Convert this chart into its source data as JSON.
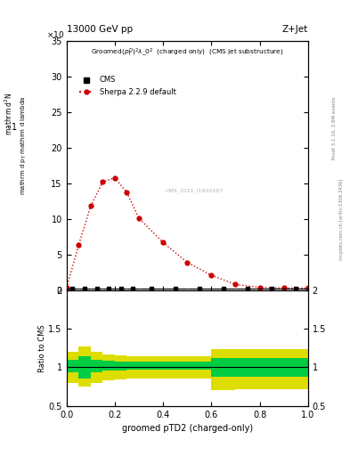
{
  "title_top": "13000 GeV pp",
  "title_right": "Z+Jet",
  "xlabel": "groomed pTD2 (charged-only)",
  "ylabel_main_lines": [
    "mathrm d^2N",
    "mathrm d p_T mathrm d lambda"
  ],
  "ylabel_ratio": "Ratio to CMS",
  "rivet_label": "Rivet 3.1.10, 2.8M events",
  "mcplots_label": "mcplots.cern.ch [arXiv:1306.3436]",
  "cms_label": "CMS_2021_I1920187",
  "ylim_main": [
    0,
    35
  ],
  "ylim_ratio": [
    0.5,
    2.0
  ],
  "xlim": [
    0.0,
    1.0
  ],
  "sherpa_x": [
    0.0,
    0.05,
    0.1,
    0.15,
    0.2,
    0.25,
    0.3,
    0.4,
    0.5,
    0.6,
    0.7,
    0.8,
    0.9,
    1.0
  ],
  "sherpa_y": [
    0.3,
    6.3,
    11.8,
    15.2,
    15.8,
    13.7,
    10.1,
    6.7,
    3.9,
    2.1,
    0.8,
    0.4,
    0.3,
    0.3
  ],
  "cms_x": [
    0.025,
    0.075,
    0.125,
    0.175,
    0.225,
    0.275,
    0.35,
    0.45,
    0.55,
    0.65,
    0.75,
    0.85,
    0.95
  ],
  "cms_y": [
    0.2,
    0.2,
    0.2,
    0.2,
    0.2,
    0.2,
    0.2,
    0.2,
    0.2,
    0.2,
    0.2,
    0.2,
    0.2
  ],
  "cms_xerr": [
    0.025,
    0.025,
    0.025,
    0.025,
    0.025,
    0.025,
    0.05,
    0.05,
    0.05,
    0.05,
    0.05,
    0.05,
    0.05
  ],
  "ratio_x_edges": [
    0.0,
    0.05,
    0.1,
    0.15,
    0.2,
    0.25,
    0.3,
    0.4,
    0.5,
    0.6,
    0.7,
    0.8,
    0.9,
    1.0
  ],
  "ratio_green_lo": [
    0.93,
    0.85,
    0.93,
    0.96,
    0.96,
    0.97,
    0.97,
    0.97,
    0.97,
    0.88,
    0.88,
    0.88,
    0.88
  ],
  "ratio_green_hi": [
    1.1,
    1.14,
    1.1,
    1.08,
    1.07,
    1.07,
    1.07,
    1.07,
    1.07,
    1.12,
    1.12,
    1.12,
    1.12
  ],
  "ratio_yellow_lo": [
    0.8,
    0.75,
    0.8,
    0.83,
    0.84,
    0.85,
    0.85,
    0.85,
    0.85,
    0.7,
    0.72,
    0.72,
    0.72
  ],
  "ratio_yellow_hi": [
    1.2,
    1.27,
    1.2,
    1.17,
    1.15,
    1.14,
    1.14,
    1.14,
    1.14,
    1.24,
    1.24,
    1.24,
    1.24
  ],
  "sherpa_color": "#cc0000",
  "cms_color": "black",
  "green_color": "#00cc44",
  "yellow_color": "#dddd00",
  "background_color": "white",
  "plot_subtitle": "Groomed$(p_T^D)^2\\lambda\\_0^2$  (charged only)  (CMS jet substructure)"
}
